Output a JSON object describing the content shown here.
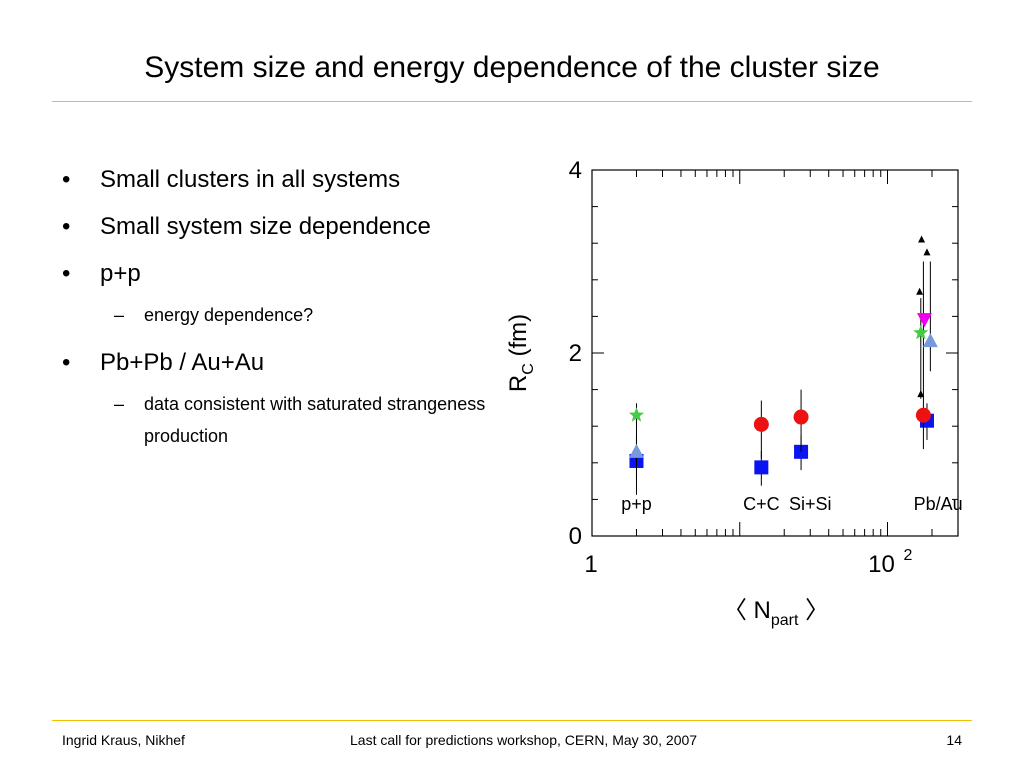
{
  "title": "System size and energy dependence of the cluster size",
  "accent_color": "#f2c200",
  "bullets": [
    {
      "text": "Small clusters in all systems",
      "sub": []
    },
    {
      "text": "Small system size dependence",
      "sub": []
    },
    {
      "text": "p+p",
      "sub": [
        "energy dependence?"
      ]
    },
    {
      "text": "Pb+Pb / Au+Au",
      "sub": [
        "data consistent with saturated strangeness production"
      ]
    }
  ],
  "chart_data": {
    "type": "scatter",
    "xscale": "log",
    "xlim": [
      1,
      300
    ],
    "ylim": [
      0,
      4
    ],
    "x_tick_labels": [
      "1",
      "10",
      "2"
    ],
    "y_tick_labels": [
      "0",
      "2",
      "4"
    ],
    "xlabel": "〈 N",
    "xlabel_sub": "part",
    "xlabel_end": "〉",
    "ylabel": "R",
    "ylabel_sub": "C",
    "ylabel_end": "(fm)",
    "grid": false,
    "system_labels": [
      {
        "text": "p+p",
        "x": 2
      },
      {
        "text": "C+C",
        "x": 14
      },
      {
        "text": "Si+Si",
        "x": 30
      },
      {
        "text": "Pb/Au",
        "x": 220
      }
    ],
    "series": [
      {
        "marker": "square",
        "color": "#0a14f0",
        "points": [
          {
            "x": 2,
            "y": 0.82,
            "lo": 0.62,
            "hi": 0.98
          },
          {
            "x": 14,
            "y": 0.75,
            "lo": 0.55,
            "hi": 0.93
          },
          {
            "x": 26,
            "y": 0.92,
            "lo": 0.72,
            "hi": 1.1
          },
          {
            "x": 185,
            "y": 1.26,
            "lo": 1.05,
            "hi": 1.45
          }
        ]
      },
      {
        "marker": "circle",
        "color": "#ee1111",
        "points": [
          {
            "x": 14,
            "y": 1.22,
            "lo": 0.85,
            "hi": 1.48
          },
          {
            "x": 26,
            "y": 1.3,
            "lo": 0.92,
            "hi": 1.6
          },
          {
            "x": 175,
            "y": 1.32,
            "lo": 0.95,
            "hi": 3.0
          }
        ]
      },
      {
        "marker": "star",
        "color": "#44cc44",
        "points": [
          {
            "x": 2,
            "y": 1.32,
            "lo": 0.45,
            "hi": 1.45
          },
          {
            "x": 168,
            "y": 2.22,
            "lo": 1.5,
            "hi": 2.6
          }
        ]
      },
      {
        "marker": "triangle-up",
        "color": "#7799dd",
        "points": [
          {
            "x": 2,
            "y": 0.92,
            "lo": 0.75,
            "hi": 1.1
          },
          {
            "x": 195,
            "y": 2.13,
            "lo": 1.8,
            "hi": 3.0
          }
        ]
      },
      {
        "marker": "triangle-down",
        "color": "#ee00ee",
        "points": [
          {
            "x": 178,
            "y": 2.37
          }
        ]
      },
      {
        "marker": "triangle-up-small",
        "color": "#000000",
        "points": [
          {
            "x": 170,
            "y": 3.24
          },
          {
            "x": 185,
            "y": 3.1
          },
          {
            "x": 165,
            "y": 2.67
          },
          {
            "x": 168,
            "y": 1.55
          }
        ]
      }
    ]
  },
  "footer": {
    "left": "Ingrid Kraus, Nikhef",
    "center": "Last call for predictions workshop, CERN, May 30, 2007",
    "right": "14"
  }
}
